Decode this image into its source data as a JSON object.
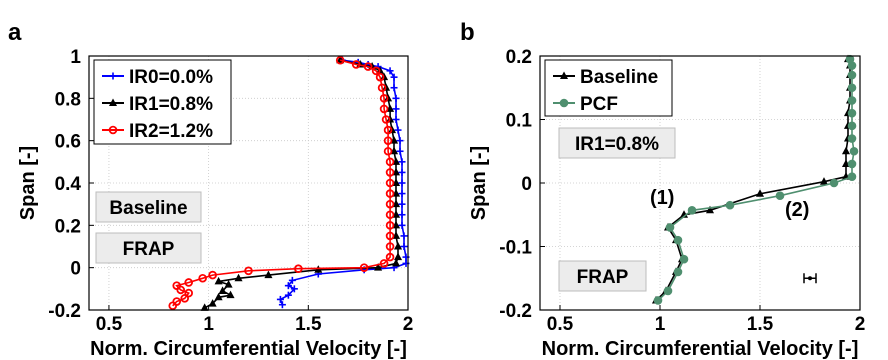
{
  "chart_data": [
    {
      "panel": "a",
      "type": "line",
      "xlabel": "Norm. Circumferential Velocity [-]",
      "ylabel": "Span [-]",
      "xlim": [
        0.4,
        2.0
      ],
      "ylim": [
        -0.2,
        1.0
      ],
      "xticks": [
        "0.5",
        "1",
        "1.5",
        "2"
      ],
      "yticks": [
        "-0.2",
        "0",
        "0.2",
        "0.4",
        "0.6",
        "0.8",
        "1"
      ],
      "grid": true,
      "legend_position": "top-left",
      "boxes": [
        "Baseline",
        "FRAP"
      ],
      "series": [
        {
          "name": "IR0=0.0%",
          "color": "#0000ff",
          "marker": "plus",
          "points": [
            [
              1.37,
              -0.175
            ],
            [
              1.36,
              -0.15
            ],
            [
              1.4,
              -0.13
            ],
            [
              1.43,
              -0.1
            ],
            [
              1.4,
              -0.085
            ],
            [
              1.42,
              -0.06
            ],
            [
              1.55,
              -0.03
            ],
            [
              1.78,
              -0.01
            ],
            [
              1.93,
              0.0
            ],
            [
              1.99,
              0.02
            ],
            [
              1.99,
              0.05
            ],
            [
              1.98,
              0.1
            ],
            [
              1.98,
              0.15
            ],
            [
              1.97,
              0.2
            ],
            [
              1.97,
              0.25
            ],
            [
              1.97,
              0.3
            ],
            [
              1.97,
              0.35
            ],
            [
              1.97,
              0.4
            ],
            [
              1.97,
              0.45
            ],
            [
              1.97,
              0.5
            ],
            [
              1.96,
              0.55
            ],
            [
              1.96,
              0.6
            ],
            [
              1.95,
              0.65
            ],
            [
              1.94,
              0.7
            ],
            [
              1.94,
              0.75
            ],
            [
              1.94,
              0.8
            ],
            [
              1.93,
              0.85
            ],
            [
              1.93,
              0.9
            ],
            [
              1.91,
              0.93
            ],
            [
              1.85,
              0.95
            ],
            [
              1.8,
              0.96
            ],
            [
              1.75,
              0.97
            ],
            [
              1.67,
              0.98
            ]
          ]
        },
        {
          "name": "IR1=0.8%",
          "color": "#000000",
          "marker": "triangle",
          "points": [
            [
              0.98,
              -0.19
            ],
            [
              1.02,
              -0.17
            ],
            [
              1.05,
              -0.14
            ],
            [
              1.11,
              -0.13
            ],
            [
              1.07,
              -0.11
            ],
            [
              1.1,
              -0.08
            ],
            [
              1.05,
              -0.065
            ],
            [
              1.15,
              -0.05
            ],
            [
              1.3,
              -0.035
            ],
            [
              1.55,
              -0.01
            ],
            [
              1.85,
              0.0
            ],
            [
              1.94,
              0.02
            ],
            [
              1.95,
              0.05
            ],
            [
              1.95,
              0.1
            ],
            [
              1.94,
              0.15
            ],
            [
              1.94,
              0.2
            ],
            [
              1.94,
              0.25
            ],
            [
              1.94,
              0.3
            ],
            [
              1.94,
              0.35
            ],
            [
              1.94,
              0.4
            ],
            [
              1.94,
              0.45
            ],
            [
              1.94,
              0.5
            ],
            [
              1.93,
              0.55
            ],
            [
              1.93,
              0.6
            ],
            [
              1.92,
              0.65
            ],
            [
              1.91,
              0.7
            ],
            [
              1.91,
              0.75
            ],
            [
              1.9,
              0.8
            ],
            [
              1.89,
              0.85
            ],
            [
              1.88,
              0.9
            ],
            [
              1.86,
              0.93
            ],
            [
              1.82,
              0.95
            ],
            [
              1.76,
              0.96
            ],
            [
              1.66,
              0.98
            ]
          ]
        },
        {
          "name": "IR2=1.2%",
          "color": "#ff0000",
          "marker": "circle",
          "points": [
            [
              0.82,
              -0.18
            ],
            [
              0.84,
              -0.16
            ],
            [
              0.88,
              -0.145
            ],
            [
              0.9,
              -0.12
            ],
            [
              0.86,
              -0.105
            ],
            [
              0.84,
              -0.085
            ],
            [
              0.9,
              -0.07
            ],
            [
              0.97,
              -0.05
            ],
            [
              1.02,
              -0.035
            ],
            [
              1.2,
              -0.015
            ],
            [
              1.45,
              -0.005
            ],
            [
              1.78,
              0.0
            ],
            [
              1.88,
              0.02
            ],
            [
              1.91,
              0.05
            ],
            [
              1.91,
              0.1
            ],
            [
              1.91,
              0.15
            ],
            [
              1.91,
              0.2
            ],
            [
              1.91,
              0.25
            ],
            [
              1.91,
              0.3
            ],
            [
              1.91,
              0.35
            ],
            [
              1.91,
              0.4
            ],
            [
              1.91,
              0.45
            ],
            [
              1.91,
              0.5
            ],
            [
              1.9,
              0.55
            ],
            [
              1.9,
              0.6
            ],
            [
              1.9,
              0.65
            ],
            [
              1.89,
              0.7
            ],
            [
              1.88,
              0.75
            ],
            [
              1.88,
              0.8
            ],
            [
              1.87,
              0.85
            ],
            [
              1.86,
              0.9
            ],
            [
              1.84,
              0.93
            ],
            [
              1.8,
              0.95
            ],
            [
              1.74,
              0.96
            ],
            [
              1.66,
              0.98
            ]
          ]
        }
      ]
    },
    {
      "panel": "b",
      "type": "line",
      "xlabel": "Norm. Circumferential Velocity [-]",
      "ylabel": "Span [-]",
      "xlim": [
        0.4,
        2.0
      ],
      "ylim": [
        -0.2,
        0.2
      ],
      "xticks": [
        "0.5",
        "1",
        "1.5",
        "2"
      ],
      "yticks": [
        "-0.2",
        "-0.1",
        "0",
        "0.1",
        "0.2"
      ],
      "grid": true,
      "legend_position": "top-left",
      "boxes": [
        "IR1=0.8%",
        "FRAP"
      ],
      "annotations": [
        "(1)",
        "(2)"
      ],
      "error_bar": {
        "x": 1.75,
        "y": -0.15,
        "xerr": 0.03
      },
      "series": [
        {
          "name": "Baseline",
          "color": "#000000",
          "marker": "triangle",
          "points": [
            [
              0.98,
              -0.185
            ],
            [
              1.03,
              -0.17
            ],
            [
              1.08,
              -0.14
            ],
            [
              1.11,
              -0.12
            ],
            [
              1.08,
              -0.09
            ],
            [
              1.04,
              -0.07
            ],
            [
              1.12,
              -0.05
            ],
            [
              1.25,
              -0.043
            ],
            [
              1.5,
              -0.017
            ],
            [
              1.82,
              0.002
            ],
            [
              1.93,
              0.01
            ],
            [
              1.93,
              0.03
            ],
            [
              1.93,
              0.05
            ],
            [
              1.94,
              0.07
            ],
            [
              1.94,
              0.09
            ],
            [
              1.94,
              0.11
            ],
            [
              1.95,
              0.13
            ],
            [
              1.95,
              0.15
            ],
            [
              1.95,
              0.17
            ],
            [
              1.95,
              0.185
            ],
            [
              1.94,
              0.195
            ]
          ]
        },
        {
          "name": "PCF",
          "color": "#4f8f6f",
          "marker": "circle",
          "points": [
            [
              0.99,
              -0.185
            ],
            [
              1.04,
              -0.17
            ],
            [
              1.09,
              -0.14
            ],
            [
              1.12,
              -0.12
            ],
            [
              1.09,
              -0.09
            ],
            [
              1.05,
              -0.07
            ],
            [
              1.16,
              -0.043
            ],
            [
              1.35,
              -0.035
            ],
            [
              1.6,
              -0.02
            ],
            [
              1.87,
              0.0
            ],
            [
              1.96,
              0.01
            ],
            [
              1.96,
              0.03
            ],
            [
              1.97,
              0.05
            ],
            [
              1.96,
              0.07
            ],
            [
              1.96,
              0.09
            ],
            [
              1.96,
              0.11
            ],
            [
              1.96,
              0.13
            ],
            [
              1.96,
              0.15
            ],
            [
              1.96,
              0.17
            ],
            [
              1.96,
              0.185
            ],
            [
              1.95,
              0.195
            ]
          ]
        }
      ]
    }
  ]
}
